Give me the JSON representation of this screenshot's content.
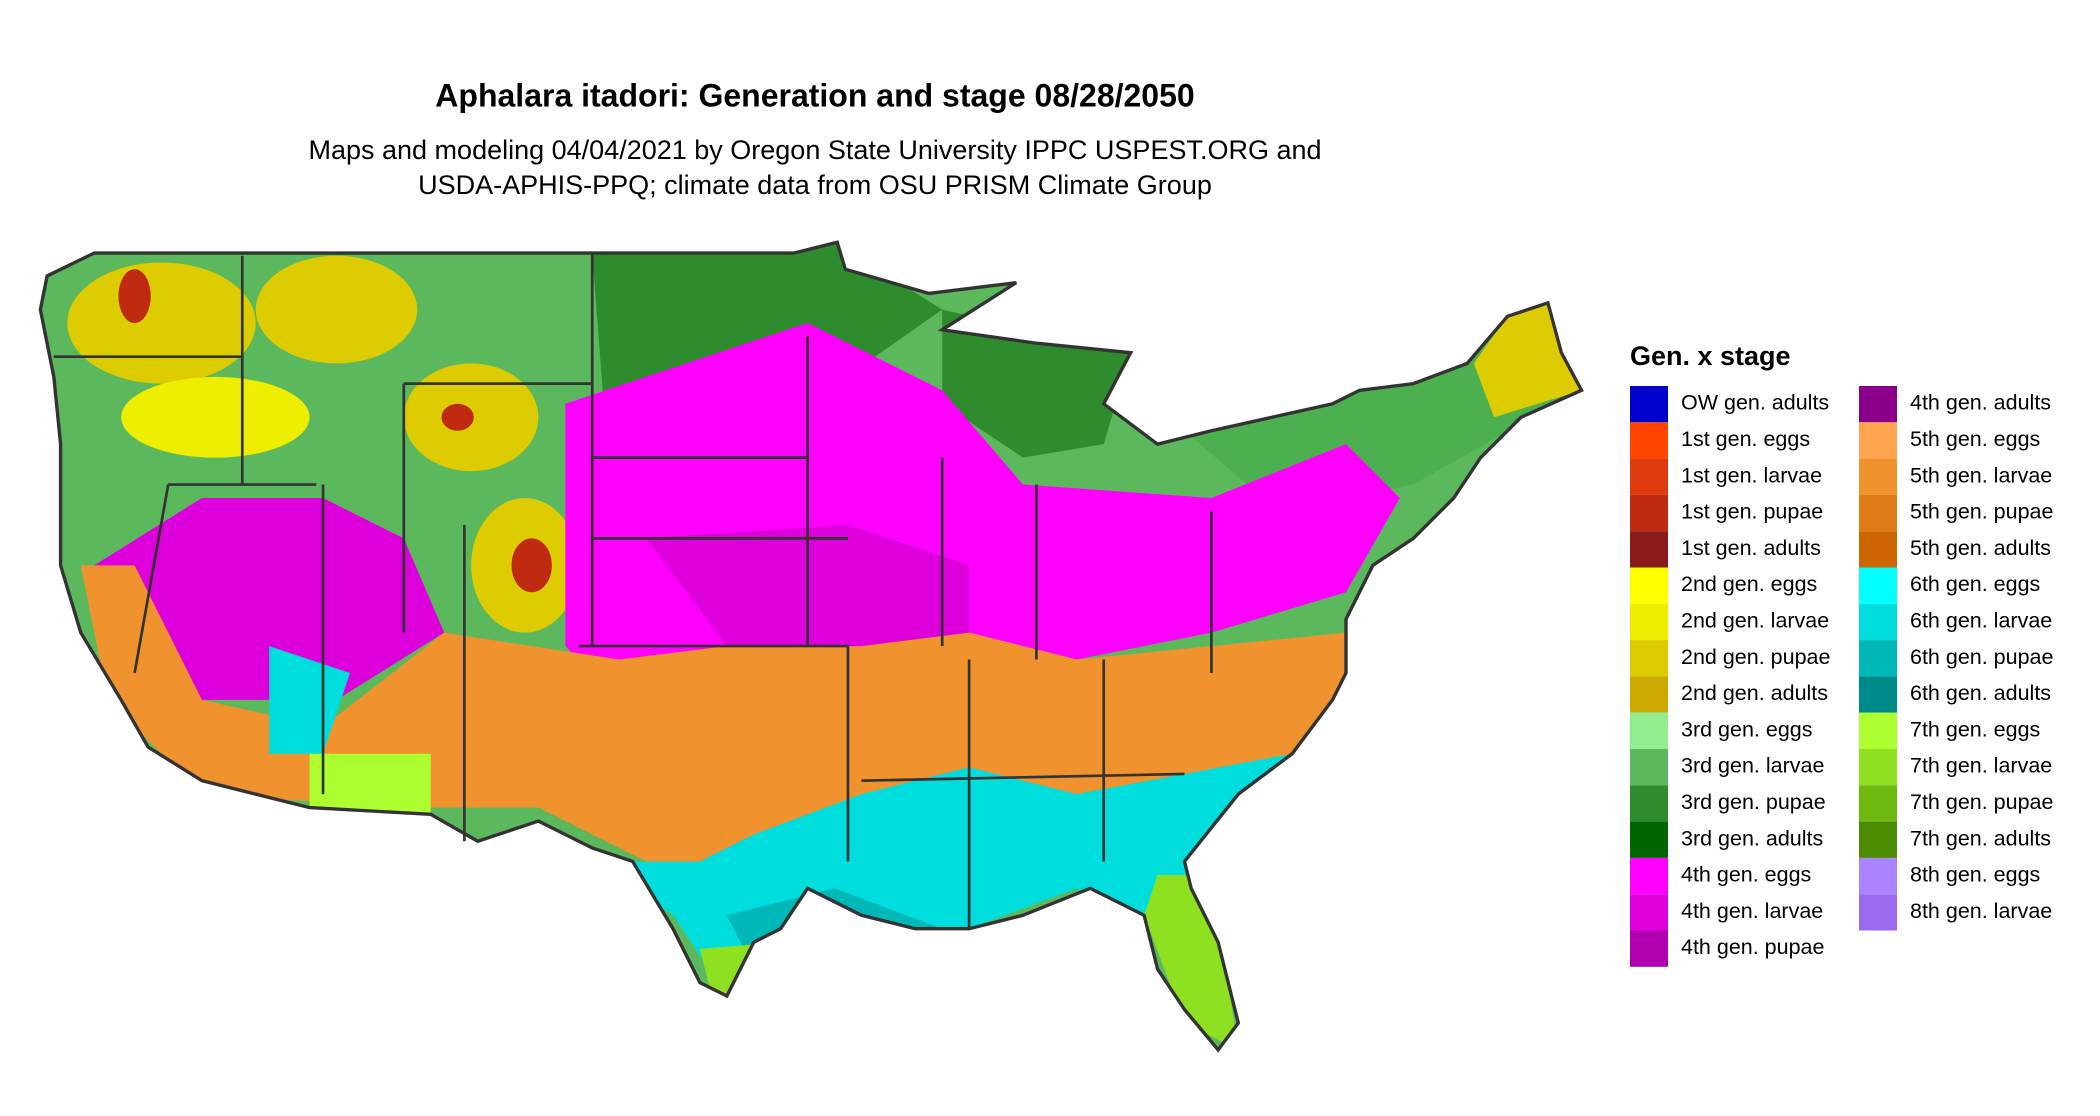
{
  "title": "Aphalara itadori: Generation and stage 08/28/2050",
  "subtitle": [
    "Maps and modeling 04/04/2021 by Oregon State University IPPC USPEST.ORG and",
    "USDA-APHIS-PPQ; climate data from OSU PRISM Climate Group"
  ],
  "legend": {
    "title": "Gen. x stage",
    "entries": [
      {
        "label": "OW gen. adults",
        "color": "#0000cc"
      },
      {
        "label": "1st gen. eggs",
        "color": "#ff4500"
      },
      {
        "label": "1st gen. larvae",
        "color": "#e03a10"
      },
      {
        "label": "1st gen. pupae",
        "color": "#c02a10"
      },
      {
        "label": "1st gen. adults",
        "color": "#8b1a1a"
      },
      {
        "label": "2nd gen. eggs",
        "color": "#ffff00"
      },
      {
        "label": "2nd gen. larvae",
        "color": "#eeee00"
      },
      {
        "label": "2nd gen. pupae",
        "color": "#ddcc00"
      },
      {
        "label": "2nd gen. adults",
        "color": "#ccaa00"
      },
      {
        "label": "3rd gen. eggs",
        "color": "#90ee90"
      },
      {
        "label": "3rd gen. larvae",
        "color": "#5cb85c"
      },
      {
        "label": "3rd gen. pupae",
        "color": "#2e8b2e"
      },
      {
        "label": "3rd gen. adults",
        "color": "#006400"
      },
      {
        "label": "4th gen. eggs",
        "color": "#ff00ff"
      },
      {
        "label": "4th gen. larvae",
        "color": "#dd00dd"
      },
      {
        "label": "4th gen. pupae",
        "color": "#b000b0"
      },
      {
        "label": "4th gen. adults",
        "color": "#8b008b"
      },
      {
        "label": "5th gen. eggs",
        "color": "#ffa54f"
      },
      {
        "label": "5th gen. larvae",
        "color": "#f0922e"
      },
      {
        "label": "5th gen. pupae",
        "color": "#e07b1a"
      },
      {
        "label": "5th gen. adults",
        "color": "#cd6600"
      },
      {
        "label": "6th gen. eggs",
        "color": "#00ffff"
      },
      {
        "label": "6th gen. larvae",
        "color": "#00dddd"
      },
      {
        "label": "6th gen. pupae",
        "color": "#00b8b8"
      },
      {
        "label": "6th gen. adults",
        "color": "#008b8b"
      },
      {
        "label": "7th gen. eggs",
        "color": "#adff2f"
      },
      {
        "label": "7th gen. larvae",
        "color": "#8ee020"
      },
      {
        "label": "7th gen. pupae",
        "color": "#6eb810"
      },
      {
        "label": "7th gen. adults",
        "color": "#4a8b00"
      },
      {
        "label": "8th gen. eggs",
        "color": "#ab82ff"
      },
      {
        "label": "8th gen. larvae",
        "color": "#9b6aef"
      }
    ]
  }
}
